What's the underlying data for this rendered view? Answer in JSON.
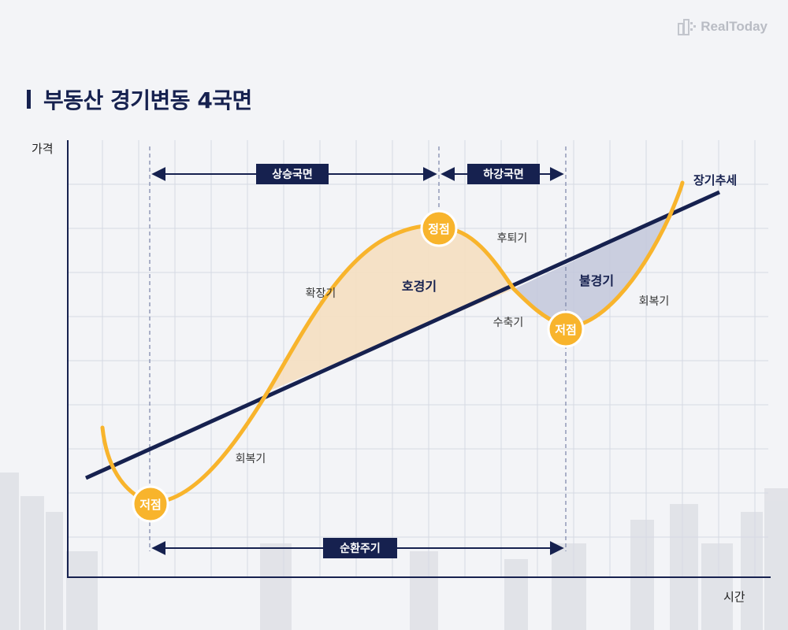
{
  "logo": {
    "text": "RealToday"
  },
  "title": "부동산 경기변동 4국면",
  "axes": {
    "y_label": "가격",
    "x_label": "시간"
  },
  "trend_label": "장기추세",
  "phase_banners": {
    "rising": "상승국면",
    "falling": "하강국면",
    "cycle": "순환주기"
  },
  "point_labels": {
    "trough": "저점",
    "peak": "정점"
  },
  "phases": {
    "recovery": "회복기",
    "expansion": "확장기",
    "boom": "호경기",
    "recession": "후퇴기",
    "contraction": "수축기",
    "slump": "불경기"
  },
  "colors": {
    "navy": "#16214f",
    "accent": "#f8b42c",
    "boom_fill": "#f5dfc0",
    "slump_fill": "#c2c7db",
    "grid": "#d6dae3",
    "background": "#f3f4f7"
  }
}
